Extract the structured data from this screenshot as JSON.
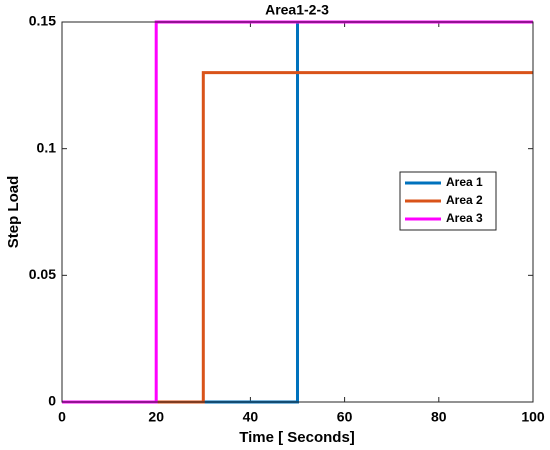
{
  "chart_data": {
    "type": "line",
    "title": "Area1-2-3",
    "x_label": "Time [ Seconds]",
    "y_label": "Step Load",
    "xlim": [
      0,
      100
    ],
    "xticks": [
      0,
      20,
      40,
      60,
      80,
      100
    ],
    "ylim": [
      0,
      0.15
    ],
    "yticks": [
      0,
      0.05,
      0.1,
      0.15
    ],
    "grid": false,
    "legend": "right",
    "series": [
      {
        "name": "Area 1",
        "color": "#0072BD",
        "x": [
          0,
          50,
          50,
          100
        ],
        "values": [
          0,
          0,
          0.15,
          0.15
        ]
      },
      {
        "name": "Area 2",
        "color": "#D95319",
        "x": [
          0,
          30,
          30,
          100
        ],
        "values": [
          0,
          0,
          0.13,
          0.13
        ]
      },
      {
        "name": "Area 3",
        "color": "#FF00FF",
        "x": [
          0,
          20,
          20,
          100
        ],
        "values": [
          0,
          0,
          0.15,
          0.15
        ]
      }
    ]
  }
}
